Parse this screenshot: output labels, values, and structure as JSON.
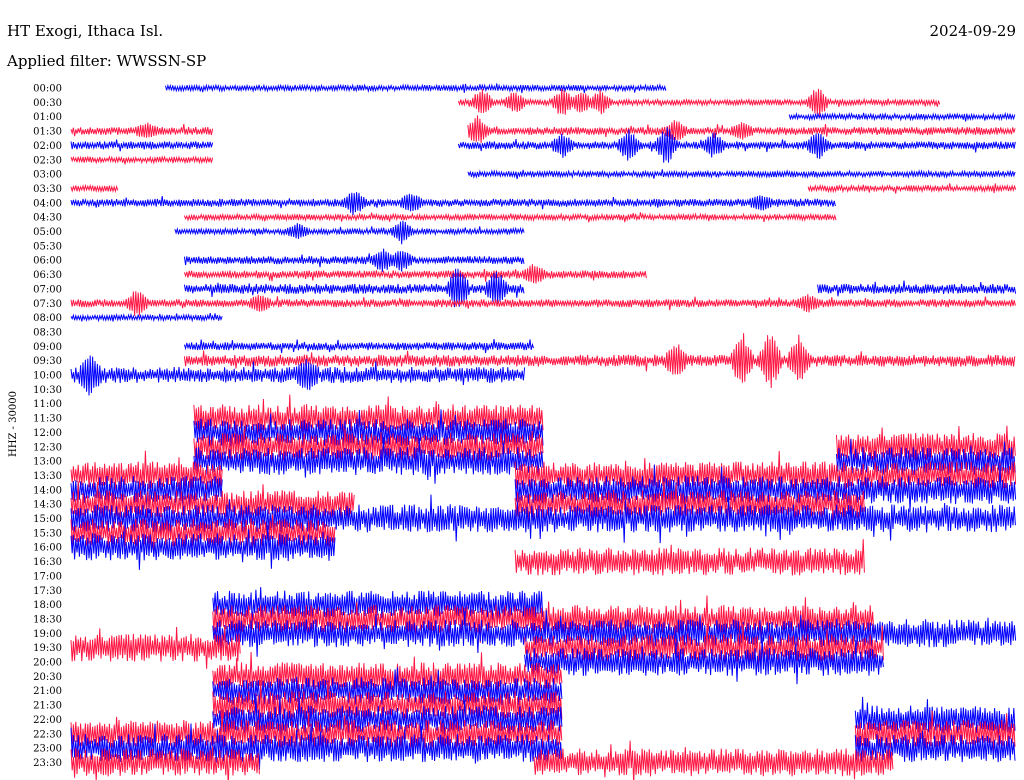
{
  "header": {
    "station": "HT Exogi, Ithaca Isl.",
    "date": "2024-09-29",
    "filter": "Applied filter: WWSSN-SP"
  },
  "chart_data": {
    "type": "line",
    "title": "HT Exogi, Ithaca Isl.",
    "subtitle": "Applied filter: WWSSN-SP",
    "date": "2024-09-29",
    "ylabel": "HHZ - 30000",
    "colors": {
      "even_rows": "#0000ff",
      "odd_rows": "#ff1744"
    },
    "ytick_labels": [
      "00:00",
      "00:30",
      "01:00",
      "01:30",
      "02:00",
      "02:30",
      "03:00",
      "03:30",
      "04:00",
      "04:30",
      "05:00",
      "05:30",
      "06:00",
      "06:30",
      "07:00",
      "07:30",
      "08:00",
      "08:30",
      "09:00",
      "09:30",
      "10:00",
      "10:30",
      "11:00",
      "11:30",
      "12:00",
      "12:30",
      "13:00",
      "13:30",
      "14:00",
      "14:30",
      "15:00",
      "15:30",
      "16:00",
      "16:30",
      "17:00",
      "17:30",
      "18:00",
      "18:30",
      "19:00",
      "19:30",
      "20:00",
      "20:30",
      "21:00",
      "21:30",
      "22:00",
      "22:30",
      "23:00",
      "23:30"
    ],
    "series": [
      {
        "segments": [
          [
            0.1,
            0.63
          ]
        ],
        "amp": 3,
        "events": []
      },
      {
        "segments": [
          [
            0.41,
            0.92
          ]
        ],
        "amp": 3,
        "events": [
          [
            0.435,
            14
          ],
          [
            0.47,
            10
          ],
          [
            0.52,
            14
          ],
          [
            0.54,
            10
          ],
          [
            0.56,
            12
          ],
          [
            0.79,
            16
          ]
        ]
      },
      {
        "segments": [
          [
            0.76,
            1.0
          ]
        ],
        "amp": 3,
        "events": []
      },
      {
        "segments": [
          [
            0.0,
            0.15
          ],
          [
            0.42,
            1.0
          ]
        ],
        "amp": 4,
        "events": [
          [
            0.08,
            5
          ],
          [
            0.43,
            12
          ],
          [
            0.64,
            8
          ],
          [
            0.71,
            5
          ]
        ]
      },
      {
        "segments": [
          [
            0.0,
            0.15
          ],
          [
            0.41,
            1.0
          ]
        ],
        "amp": 4,
        "events": [
          [
            0.52,
            10
          ],
          [
            0.59,
            14
          ],
          [
            0.63,
            18
          ],
          [
            0.68,
            10
          ],
          [
            0.79,
            12
          ]
        ]
      },
      {
        "segments": [
          [
            0.0,
            0.15
          ]
        ],
        "amp": 3,
        "events": []
      },
      {
        "segments": [
          [
            0.42,
            1.0
          ]
        ],
        "amp": 3,
        "events": []
      },
      {
        "segments": [
          [
            0.0,
            0.05
          ],
          [
            0.78,
            1.0
          ]
        ],
        "amp": 3,
        "events": []
      },
      {
        "segments": [
          [
            0.0,
            0.81
          ]
        ],
        "amp": 4,
        "events": [
          [
            0.3,
            10
          ],
          [
            0.36,
            8
          ],
          [
            0.73,
            5
          ]
        ]
      },
      {
        "segments": [
          [
            0.12,
            0.81
          ]
        ],
        "amp": 3,
        "events": []
      },
      {
        "segments": [
          [
            0.11,
            0.48
          ]
        ],
        "amp": 3,
        "events": [
          [
            0.24,
            6
          ],
          [
            0.35,
            10
          ]
        ]
      },
      {
        "segments": [],
        "amp": 0,
        "events": []
      },
      {
        "segments": [
          [
            0.12,
            0.48
          ]
        ],
        "amp": 4,
        "events": [
          [
            0.33,
            10
          ],
          [
            0.35,
            8
          ]
        ]
      },
      {
        "segments": [
          [
            0.12,
            0.61
          ]
        ],
        "amp": 4,
        "events": [
          [
            0.49,
            8
          ]
        ]
      },
      {
        "segments": [
          [
            0.12,
            0.48
          ],
          [
            0.79,
            1.0
          ]
        ],
        "amp": 5,
        "events": [
          [
            0.41,
            22
          ],
          [
            0.45,
            16
          ]
        ]
      },
      {
        "segments": [
          [
            0.0,
            1.0
          ]
        ],
        "amp": 4,
        "events": [
          [
            0.07,
            12
          ],
          [
            0.2,
            6
          ],
          [
            0.78,
            6
          ]
        ]
      },
      {
        "segments": [
          [
            0.0,
            0.16
          ]
        ],
        "amp": 3,
        "events": []
      },
      {
        "segments": [],
        "amp": 0,
        "events": []
      },
      {
        "segments": [
          [
            0.12,
            0.49
          ]
        ],
        "amp": 4,
        "events": []
      },
      {
        "segments": [
          [
            0.12,
            1.0
          ]
        ],
        "amp": 6,
        "events": [
          [
            0.64,
            14
          ],
          [
            0.71,
            26
          ],
          [
            0.74,
            30
          ],
          [
            0.77,
            22
          ]
        ]
      },
      {
        "segments": [
          [
            0.0,
            0.48
          ]
        ],
        "amp": 8,
        "events": [
          [
            0.02,
            14
          ],
          [
            0.25,
            10
          ]
        ]
      },
      {
        "segments": [],
        "amp": 0,
        "events": []
      },
      {
        "segments": [],
        "amp": 0,
        "events": []
      },
      {
        "segments": [
          [
            0.13,
            0.5
          ]
        ],
        "amp": 14,
        "events": []
      },
      {
        "segments": [
          [
            0.13,
            0.5
          ]
        ],
        "amp": 14,
        "events": []
      },
      {
        "segments": [
          [
            0.13,
            0.5
          ],
          [
            0.81,
            1.0
          ]
        ],
        "amp": 14,
        "events": []
      },
      {
        "segments": [
          [
            0.13,
            0.5
          ],
          [
            0.81,
            1.0
          ]
        ],
        "amp": 14,
        "events": []
      },
      {
        "segments": [
          [
            0.0,
            0.16
          ],
          [
            0.47,
            1.0
          ]
        ],
        "amp": 14,
        "events": []
      },
      {
        "segments": [
          [
            0.0,
            0.16
          ],
          [
            0.47,
            1.0
          ]
        ],
        "amp": 14,
        "events": []
      },
      {
        "segments": [
          [
            0.0,
            0.3
          ],
          [
            0.47,
            0.84
          ]
        ],
        "amp": 14,
        "events": []
      },
      {
        "segments": [
          [
            0.0,
            1.0
          ]
        ],
        "amp": 14,
        "events": []
      },
      {
        "segments": [
          [
            0.0,
            0.28
          ]
        ],
        "amp": 14,
        "events": []
      },
      {
        "segments": [
          [
            0.0,
            0.28
          ]
        ],
        "amp": 14,
        "events": []
      },
      {
        "segments": [
          [
            0.47,
            0.84
          ]
        ],
        "amp": 14,
        "events": []
      },
      {
        "segments": [],
        "amp": 0,
        "events": []
      },
      {
        "segments": [],
        "amp": 0,
        "events": []
      },
      {
        "segments": [
          [
            0.15,
            0.5
          ]
        ],
        "amp": 14,
        "events": []
      },
      {
        "segments": [
          [
            0.15,
            0.5
          ],
          [
            0.48,
            0.85
          ]
        ],
        "amp": 14,
        "events": []
      },
      {
        "segments": [
          [
            0.15,
            1.0
          ]
        ],
        "amp": 14,
        "events": []
      },
      {
        "segments": [
          [
            0.0,
            0.18
          ],
          [
            0.48,
            0.86
          ]
        ],
        "amp": 14,
        "events": []
      },
      {
        "segments": [
          [
            0.48,
            0.86
          ]
        ],
        "amp": 14,
        "events": []
      },
      {
        "segments": [
          [
            0.15,
            0.52
          ]
        ],
        "amp": 14,
        "events": []
      },
      {
        "segments": [
          [
            0.15,
            0.52
          ]
        ],
        "amp": 14,
        "events": []
      },
      {
        "segments": [
          [
            0.15,
            0.52
          ]
        ],
        "amp": 14,
        "events": []
      },
      {
        "segments": [
          [
            0.15,
            0.52
          ],
          [
            0.83,
            1.0
          ]
        ],
        "amp": 14,
        "events": []
      },
      {
        "segments": [
          [
            0.0,
            0.52
          ],
          [
            0.83,
            1.0
          ]
        ],
        "amp": 14,
        "events": []
      },
      {
        "segments": [
          [
            0.0,
            0.52
          ],
          [
            0.83,
            1.0
          ]
        ],
        "amp": 14,
        "events": []
      },
      {
        "segments": [
          [
            0.0,
            0.2
          ],
          [
            0.49,
            0.87
          ]
        ],
        "amp": 14,
        "events": []
      }
    ]
  }
}
